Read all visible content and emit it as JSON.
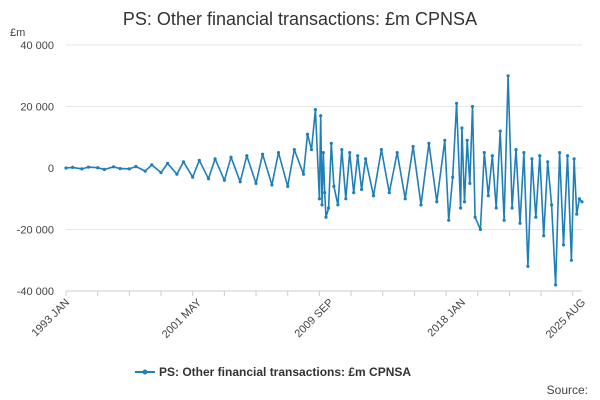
{
  "chart_data": {
    "type": "line",
    "title": "PS: Other financial transactions: £m CPNSA",
    "ylabel": "£m",
    "xlabel": "",
    "ylim": [
      -40000,
      40000
    ],
    "y_ticks": [
      "40 000",
      "20 000",
      "0",
      "-20 000",
      "-40 000"
    ],
    "y_tick_values": [
      40000,
      20000,
      0,
      -20000,
      -40000
    ],
    "x_range": [
      "1993-01",
      "2025-08"
    ],
    "x_ticks": [
      "1993 JAN",
      "2001 MAY",
      "2009 SEP",
      "2018 JAN",
      "2025 AUG"
    ],
    "grid": true,
    "legend_position": "bottom",
    "series": [
      {
        "name": "PS: Other financial transactions: £m CPNSA",
        "color": "#1f7fb6",
        "x": [
          "1993-01",
          "1993-06",
          "1994-01",
          "1994-06",
          "1995-01",
          "1995-06",
          "1996-01",
          "1996-06",
          "1997-01",
          "1997-06",
          "1998-01",
          "1998-06",
          "1999-01",
          "1999-06",
          "2000-01",
          "2000-06",
          "2001-01",
          "2001-06",
          "2002-01",
          "2002-06",
          "2003-01",
          "2003-06",
          "2004-01",
          "2004-06",
          "2005-01",
          "2005-06",
          "2006-01",
          "2006-06",
          "2007-01",
          "2007-06",
          "2008-01",
          "2008-04",
          "2008-07",
          "2008-10",
          "2009-01",
          "2009-02",
          "2009-03",
          "2009-04",
          "2009-05",
          "2009-06",
          "2009-08",
          "2009-10",
          "2009-12",
          "2010-03",
          "2010-06",
          "2010-09",
          "2010-12",
          "2011-03",
          "2011-06",
          "2011-09",
          "2011-12",
          "2012-06",
          "2012-12",
          "2013-06",
          "2013-12",
          "2014-06",
          "2014-12",
          "2015-06",
          "2015-12",
          "2016-06",
          "2016-12",
          "2017-03",
          "2017-06",
          "2017-09",
          "2017-12",
          "2018-01",
          "2018-03",
          "2018-05",
          "2018-07",
          "2018-09",
          "2018-11",
          "2019-03",
          "2019-06",
          "2019-09",
          "2019-12",
          "2020-03",
          "2020-06",
          "2020-09",
          "2020-12",
          "2021-03",
          "2021-06",
          "2021-09",
          "2021-12",
          "2022-03",
          "2022-06",
          "2022-09",
          "2022-12",
          "2023-03",
          "2023-06",
          "2023-09",
          "2023-12",
          "2024-03",
          "2024-06",
          "2024-09",
          "2024-12",
          "2025-02",
          "2025-04",
          "2025-06",
          "2025-08"
        ],
        "values": [
          0,
          200,
          -300,
          300,
          100,
          -500,
          400,
          -200,
          -300,
          500,
          -1000,
          1000,
          -1500,
          1500,
          -2000,
          2000,
          -3000,
          2500,
          -3500,
          3000,
          -4000,
          3500,
          -4500,
          4000,
          -5000,
          4500,
          -5500,
          5000,
          -6000,
          6000,
          -2000,
          11000,
          6000,
          19000,
          -10000,
          17000,
          -12000,
          5000,
          -8000,
          -16000,
          -13000,
          8000,
          -6000,
          -12000,
          6000,
          -10000,
          5000,
          -8000,
          4000,
          -7000,
          3000,
          -9000,
          6000,
          -8000,
          5000,
          -10000,
          7000,
          -12000,
          8000,
          -11000,
          9000,
          -17000,
          -3000,
          21000,
          -13000,
          13000,
          -11000,
          9000,
          -5000,
          20000,
          -16000,
          -20000,
          5000,
          -9000,
          4000,
          -13000,
          12000,
          -17000,
          30000,
          -13000,
          6000,
          -18000,
          5000,
          -32000,
          3000,
          -16000,
          4000,
          -22000,
          2000,
          -12000,
          -38000,
          5000,
          -25000,
          4000,
          -30000,
          3000,
          -15000,
          -10000,
          -11000
        ]
      }
    ],
    "source_label": "Source:"
  }
}
